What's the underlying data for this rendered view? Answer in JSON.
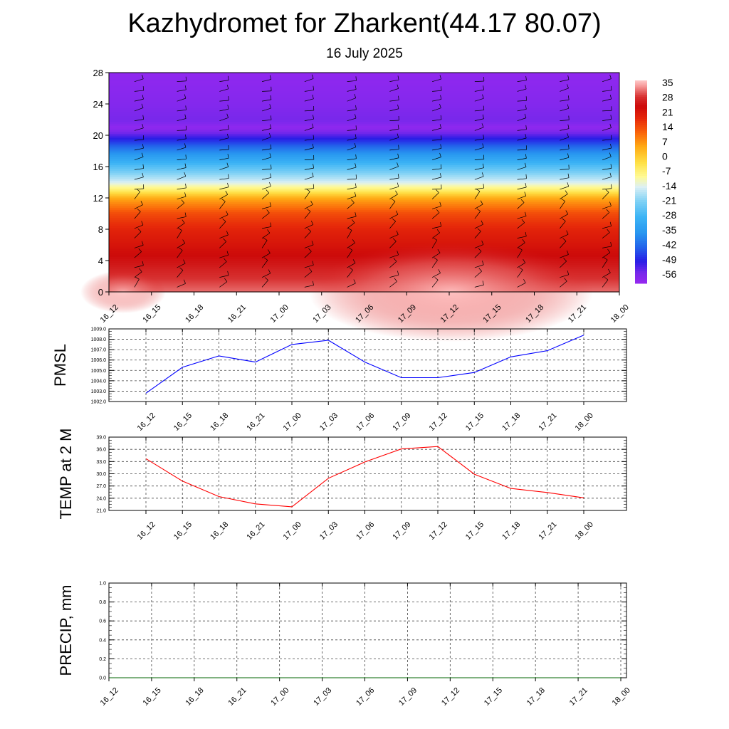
{
  "title": "Kazhydromet for Zharkent(44.17 80.07)",
  "subtitle": "16 July 2025",
  "time_labels": [
    "16_12",
    "16_15",
    "16_18",
    "16_21",
    "17_00",
    "17_03",
    "17_06",
    "17_09",
    "17_12",
    "17_15",
    "17_18",
    "17_21",
    "18_00"
  ],
  "chart_data": [
    {
      "type": "heatmap",
      "title": "",
      "ylabel": "",
      "ylim": [
        0,
        28
      ],
      "yticks": [
        0,
        4,
        8,
        12,
        16,
        20,
        24,
        28
      ],
      "x": [
        "16_12",
        "16_15",
        "16_18",
        "16_21",
        "17_00",
        "17_03",
        "17_06",
        "17_09",
        "17_12",
        "17_15",
        "17_18",
        "17_21",
        "18_00"
      ],
      "temperature_profile_by_height": [
        {
          "height": 0,
          "temp": 33
        },
        {
          "height": 4,
          "temp": 26
        },
        {
          "height": 8,
          "temp": 20
        },
        {
          "height": 10,
          "temp": 15
        },
        {
          "height": 12,
          "temp": 5
        },
        {
          "height": 13,
          "temp": -6
        },
        {
          "height": 14,
          "temp": -15
        },
        {
          "height": 16,
          "temp": -27
        },
        {
          "height": 18,
          "temp": -40
        },
        {
          "height": 20,
          "temp": -55
        },
        {
          "height": 21,
          "temp": -62
        },
        {
          "height": 22,
          "temp": -58
        },
        {
          "height": 24,
          "temp": -60
        },
        {
          "height": 28,
          "temp": -62
        }
      ],
      "colorbar": {
        "labels": [
          "35",
          "28",
          "21",
          "14",
          "7",
          "0",
          "-7",
          "-14",
          "-21",
          "-28",
          "-35",
          "-42",
          "-49",
          "-56"
        ],
        "range": [
          -63,
          38
        ]
      },
      "wind_barbs": true
    },
    {
      "type": "line",
      "ylabel": "PMSL",
      "ylim": [
        1002,
        1009
      ],
      "ytick_labels": [
        "1009.0",
        "1008.0",
        "1007.0",
        "1006.0",
        "1005.0",
        "1004.0",
        "1003.0",
        "1002.0"
      ],
      "x": [
        "16_12",
        "16_15",
        "16_18",
        "16_21",
        "17_00",
        "17_03",
        "17_06",
        "17_09",
        "17_12",
        "17_15",
        "17_18",
        "17_21",
        "18_00"
      ],
      "values": [
        1002.8,
        1005.3,
        1006.4,
        1005.8,
        1007.5,
        1007.9,
        1005.8,
        1004.3,
        1004.3,
        1004.8,
        1006.3,
        1006.9,
        1008.4
      ],
      "color": "#0000ff",
      "grid": true
    },
    {
      "type": "line",
      "ylabel": "TEMP at 2 M",
      "ylim": [
        21,
        39
      ],
      "ytick_labels": [
        "39.0",
        "36.0",
        "33.0",
        "30.0",
        "27.0",
        "24.0",
        "21.0"
      ],
      "x": [
        "16_12",
        "16_15",
        "16_18",
        "16_21",
        "17_00",
        "17_03",
        "17_06",
        "17_09",
        "17_12",
        "17_15",
        "17_18",
        "17_21",
        "18_00"
      ],
      "values": [
        33.7,
        28.2,
        24.4,
        22.6,
        21.9,
        28.9,
        32.9,
        36.1,
        36.7,
        29.9,
        26.4,
        25.4,
        24.1
      ],
      "color": "#ff0000",
      "grid": true
    },
    {
      "type": "line",
      "ylabel": "PRECIP, mm",
      "ylim": [
        0,
        1
      ],
      "ytick_labels": [
        "1.0",
        "0.8",
        "0.6",
        "0.4",
        "0.2",
        "0.0"
      ],
      "x": [
        "16_12",
        "16_15",
        "16_18",
        "16_21",
        "17_00",
        "17_03",
        "17_06",
        "17_09",
        "17_12",
        "17_15",
        "17_18",
        "17_21",
        "18_00"
      ],
      "values": [
        0,
        0,
        0,
        0,
        0,
        0,
        0,
        0,
        0,
        0,
        0,
        0,
        0
      ],
      "color": "#006400",
      "grid": true
    }
  ]
}
